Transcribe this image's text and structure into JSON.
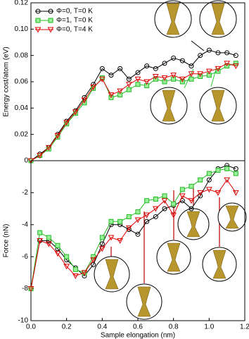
{
  "chart_data": [
    {
      "type": "line",
      "ylabel": "Energy cost/atom (eV)",
      "legend": "upper left",
      "x": [
        0,
        0.05,
        0.1,
        0.15,
        0.2,
        0.25,
        0.3,
        0.35,
        0.4,
        0.45,
        0.5,
        0.55,
        0.6,
        0.65,
        0.7,
        0.75,
        0.8,
        0.85,
        0.9,
        0.95,
        1.0,
        1.05,
        1.1,
        1.15
      ],
      "xlim": [
        0,
        1.2
      ],
      "ylim": [
        0,
        0.12
      ],
      "yticks": [
        0,
        0.02,
        0.04,
        0.06,
        0.08,
        {
          "value": 0.1,
          "label": "0.10"
        },
        0.12
      ],
      "series": [
        {
          "name": "Φ=0, T=0 K",
          "color": "#000000",
          "marker": "circle",
          "values": [
            0,
            0.005,
            0.01,
            0.02,
            0.03,
            0.038,
            0.048,
            0.058,
            0.07,
            0.065,
            0.07,
            0.062,
            0.067,
            0.072,
            0.07,
            0.074,
            0.078,
            0.076,
            0.072,
            0.08,
            0.084,
            0.082,
            0.082,
            0.08
          ]
        },
        {
          "name": "Φ=1, T=0 K",
          "color": "#22bb22",
          "marker": "square",
          "values": [
            0,
            0.004,
            0.009,
            0.018,
            0.028,
            0.036,
            0.044,
            0.055,
            0.063,
            0.048,
            0.05,
            0.054,
            0.058,
            0.057,
            0.062,
            0.06,
            0.062,
            0.06,
            0.062,
            0.064,
            0.065,
            0.068,
            0.072,
            0.074
          ]
        },
        {
          "name": "Φ=0, T=4 K",
          "color": "#dd0000",
          "marker": "triangle",
          "values": [
            0,
            0.004,
            0.01,
            0.019,
            0.029,
            0.037,
            0.046,
            0.056,
            0.062,
            0.05,
            0.053,
            0.058,
            0.062,
            0.06,
            0.064,
            0.063,
            0.065,
            0.062,
            0.066,
            0.066,
            0.068,
            0.07,
            0.074,
            0.072
          ]
        }
      ]
    },
    {
      "type": "line",
      "ylabel": "Force (nN)",
      "xlabel": "Sample elongation (nm)",
      "x": [
        0,
        0.05,
        0.1,
        0.15,
        0.2,
        0.25,
        0.3,
        0.35,
        0.4,
        0.45,
        0.5,
        0.55,
        0.6,
        0.65,
        0.7,
        0.75,
        0.8,
        0.85,
        0.9,
        0.95,
        1.0,
        1.05,
        1.1,
        1.15
      ],
      "xlim": [
        0,
        1.2
      ],
      "ylim": [
        -10,
        0
      ],
      "xticks": [
        {
          "value": 0,
          "label": "0.0"
        },
        0.2,
        0.4,
        0.6,
        0.8,
        {
          "value": 1,
          "label": "1.0"
        },
        1.2
      ],
      "yticks": [
        -10,
        -8,
        -6,
        -4,
        -2
      ],
      "series": [
        {
          "name": "Φ=0, T=0 K",
          "color": "#000000",
          "marker": "circle",
          "values": [
            -8,
            -5,
            -5,
            -5.5,
            -6.2,
            -6.7,
            -7.2,
            -6.5,
            -5.2,
            -4,
            -4,
            -4.3,
            -4.6,
            -3.8,
            -3.5,
            -3,
            -2.8,
            -2.5,
            -3,
            -2.2,
            -1.2,
            -0.5,
            -0.3,
            -0.5
          ]
        },
        {
          "name": "Φ=1, T=0 K",
          "color": "#22bb22",
          "marker": "square",
          "values": [
            -8,
            -4.5,
            -4.8,
            -5.3,
            -6,
            -6.8,
            -7,
            -6,
            -4.8,
            -3.8,
            -3.8,
            -3.5,
            -3.2,
            -2.5,
            -2.4,
            -2.2,
            -2.7,
            -1.8,
            -1.6,
            -1.2,
            -0.8,
            -0.6,
            -0.5,
            -0.8
          ]
        },
        {
          "name": "Φ=0, T=4 K",
          "color": "#dd0000",
          "marker": "triangle",
          "values": [
            -8,
            -5,
            -5.2,
            -5.8,
            -6.6,
            -7.2,
            -7,
            -6.2,
            -5.5,
            -4.8,
            -5,
            -4.2,
            -3.7,
            -3.4,
            -3,
            -2.5,
            -3.4,
            -2.2,
            -2.5,
            -2,
            -1.8,
            -2,
            -1.2,
            -2
          ]
        }
      ]
    }
  ]
}
